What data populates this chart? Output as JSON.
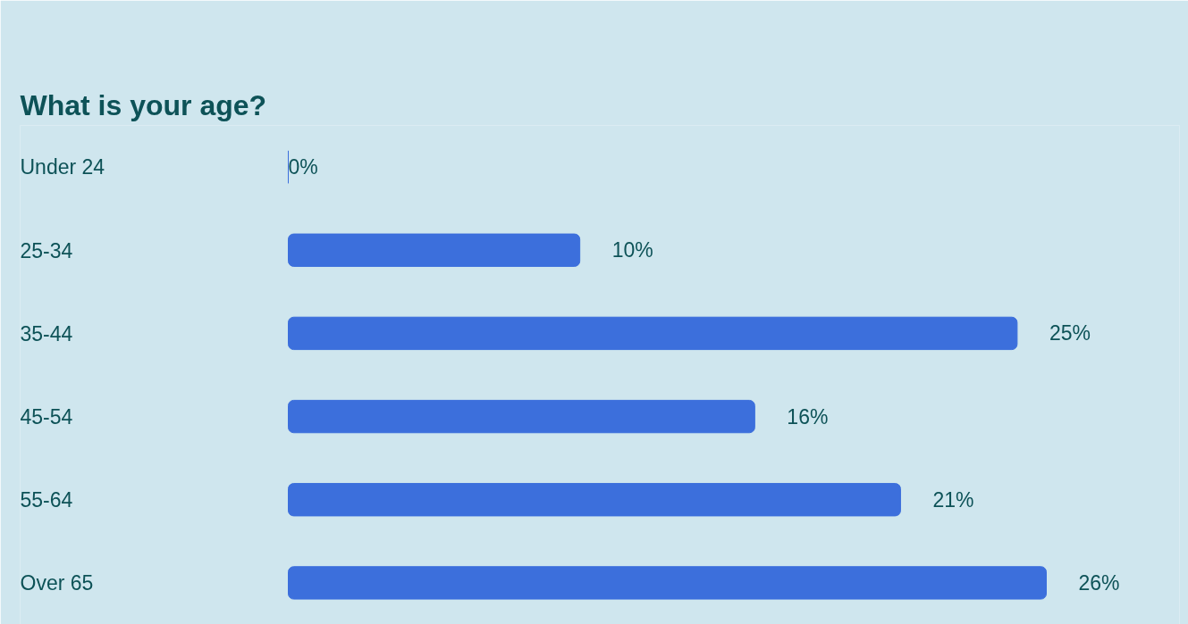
{
  "chart_data": {
    "type": "bar",
    "orientation": "horizontal",
    "title": "What is your age?",
    "categories": [
      "Under 24",
      "25-34",
      "35-44",
      "45-54",
      "55-64",
      "Over 65"
    ],
    "values": [
      0,
      10,
      25,
      16,
      21,
      26
    ],
    "value_labels": [
      "0%",
      "10%",
      "25%",
      "16%",
      "21%",
      "26%"
    ],
    "color": "#3c6fdc",
    "grid": false
  }
}
